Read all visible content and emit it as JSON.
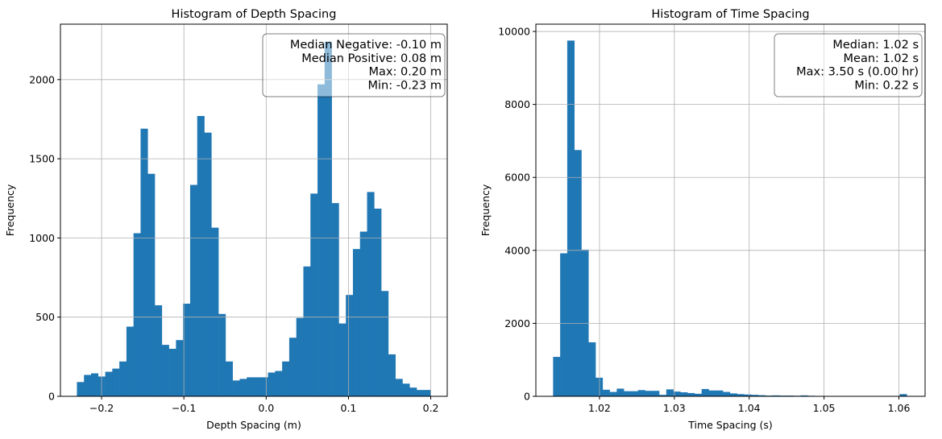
{
  "chart_data": [
    {
      "type": "bar",
      "title": "Histogram of Depth Spacing",
      "xlabel": "Depth Spacing (m)",
      "ylabel": "Frequency",
      "xlim": [
        -0.25,
        0.22
      ],
      "ylim": [
        0,
        2350
      ],
      "xticks": [
        -0.2,
        -0.1,
        0.0,
        0.1,
        0.2
      ],
      "xtick_labels": [
        "−0.2",
        "−0.1",
        "0.0",
        "0.1",
        "0.2"
      ],
      "yticks": [
        0,
        500,
        1000,
        1500,
        2000
      ],
      "yticks_labels": [
        "0",
        "500",
        "1000",
        "1500",
        "2000"
      ],
      "grid": true,
      "color": "#1f77b4",
      "bin_start": -0.23,
      "bin_width": 0.0086,
      "values": [
        90,
        135,
        145,
        125,
        155,
        175,
        220,
        440,
        1030,
        1690,
        1405,
        575,
        325,
        300,
        355,
        585,
        1335,
        1770,
        1665,
        1065,
        520,
        220,
        100,
        110,
        120,
        120,
        120,
        150,
        160,
        220,
        370,
        495,
        820,
        1280,
        1970,
        2240,
        1220,
        460,
        640,
        930,
        1040,
        1290,
        1185,
        665,
        265,
        110,
        80,
        55,
        40,
        40
      ],
      "stats_box": {
        "lines": [
          "Median Negative: -0.10 m",
          "Median Positive: 0.08 m",
          "Max: 0.20 m",
          "Min: -0.23 m"
        ],
        "placement": "top-right"
      }
    },
    {
      "type": "bar",
      "title": "Histogram of Time Spacing",
      "xlabel": "Time Spacing (s)",
      "ylabel": "Frequency",
      "xlim": [
        1.0115,
        1.0635
      ],
      "ylim": [
        0,
        10200
      ],
      "xticks": [
        1.02,
        1.03,
        1.04,
        1.05,
        1.06
      ],
      "xtick_labels": [
        "1.02",
        "1.03",
        "1.04",
        "1.05",
        "1.06"
      ],
      "yticks": [
        0,
        2000,
        4000,
        6000,
        8000,
        10000
      ],
      "yticks_labels": [
        "0",
        "2000",
        "4000",
        "6000",
        "8000",
        "10000"
      ],
      "grid": true,
      "color": "#1f77b4",
      "bin_start": 1.0138,
      "bin_width": 0.000945,
      "values": [
        1080,
        3920,
        9750,
        6750,
        4020,
        1480,
        510,
        180,
        120,
        210,
        140,
        140,
        170,
        150,
        150,
        40,
        190,
        130,
        110,
        90,
        70,
        200,
        160,
        160,
        120,
        80,
        60,
        50,
        40,
        30,
        20,
        25,
        20,
        20,
        15,
        25,
        15,
        10,
        10,
        8,
        8,
        8,
        6,
        5,
        5,
        5,
        5,
        4,
        4,
        60
      ],
      "stats_box": {
        "lines": [
          "Median: 1.02 s",
          "Mean: 1.02 s",
          "Max: 3.50 s (0.00 hr)",
          "Min: 0.22 s"
        ],
        "placement": "top-right"
      }
    }
  ]
}
